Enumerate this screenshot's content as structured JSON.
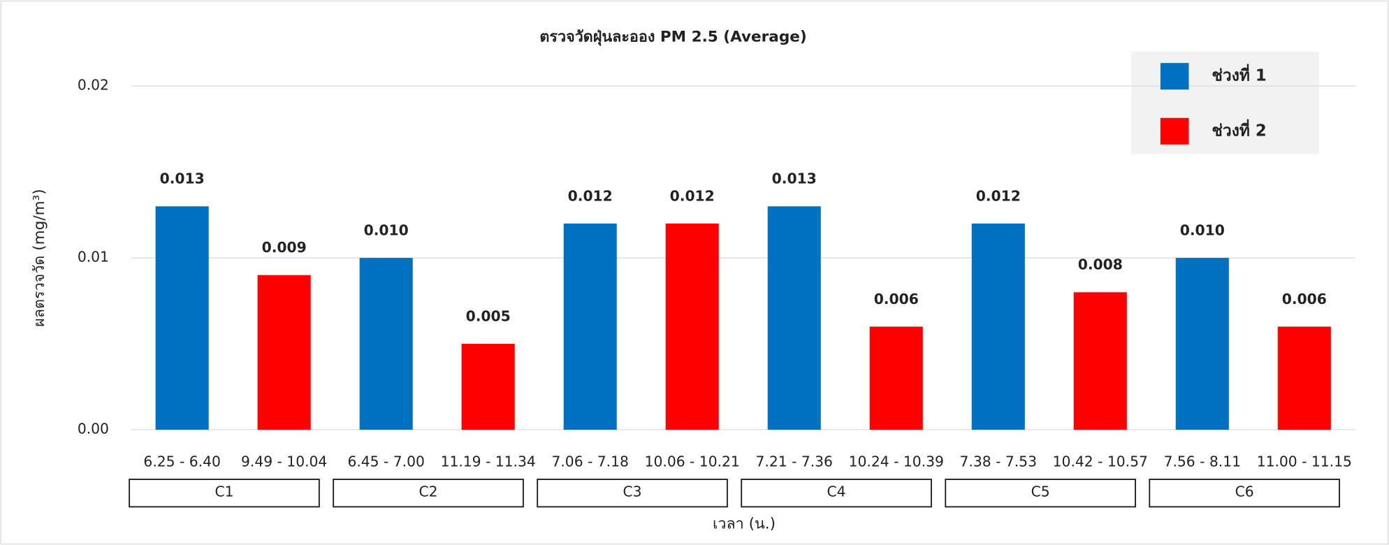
{
  "chart_data": {
    "type": "bar",
    "title": "ตรวจวัดฝุ่นละออง PM 2.5 (Average)",
    "x_label": "เวลา (น.)",
    "y_label": "ผลตรวจวัด (mg/m³)",
    "categories": [
      "6.25 - 6.40",
      "9.49 - 10.04",
      "6.45 - 7.00",
      "11.19 - 11.34",
      "7.06 - 7.18",
      "10.06 - 10.21",
      "7.21 - 7.36",
      "10.24 - 10.39",
      "7.38 - 7.53",
      "10.42 - 10.57",
      "7.56 - 8.11",
      "11.00 - 11.15"
    ],
    "groups": [
      "C1",
      "C2",
      "C3",
      "C4",
      "C5",
      "C6"
    ],
    "series": [
      {
        "name": "ช่วงที่ 1",
        "color": "#0070c0",
        "values": [
          0.013,
          null,
          0.01,
          null,
          0.012,
          null,
          0.013,
          null,
          0.012,
          null,
          0.01,
          null
        ],
        "value_labels": [
          "0.013",
          null,
          "0.010",
          null,
          "0.012",
          null,
          "0.013",
          null,
          "0.012",
          null,
          "0.010",
          null
        ]
      },
      {
        "name": "ช่วงที่ 2",
        "color": "#ff0000",
        "values": [
          null,
          0.009,
          null,
          0.005,
          null,
          0.012,
          null,
          0.006,
          null,
          0.008,
          null,
          0.006
        ],
        "value_labels": [
          null,
          "0.009",
          null,
          "0.005",
          null,
          "0.012",
          null,
          "0.006",
          null,
          "0.008",
          null,
          "0.006"
        ]
      }
    ],
    "ylim": [
      0,
      0.02
    ],
    "yticks": [
      {
        "value": 0,
        "label": "0.00"
      },
      0.01,
      0.02
    ],
    "grid": true,
    "legend": "top-right"
  }
}
